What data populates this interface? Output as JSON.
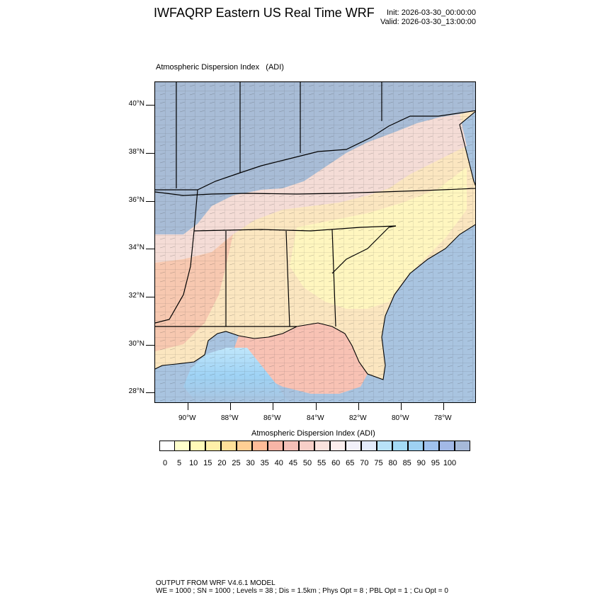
{
  "header": {
    "title": "IWFAQRP Eastern US Real Time WRF",
    "init": "Init: 2026-03-30_00:00:00",
    "valid": "Valid: 2026-03-30_13:00:00"
  },
  "map": {
    "field_label": "Atmospheric Dispersion Index",
    "field_abbrev": "(ADI)",
    "lat_ticks": [
      "40°N",
      "38°N",
      "36°N",
      "34°N",
      "32°N",
      "30°N",
      "28°N"
    ],
    "lon_ticks": [
      "90°W",
      "88°W",
      "86°W",
      "84°W",
      "82°W",
      "80°W",
      "78°W"
    ],
    "ocean_color": "#a9c4e0",
    "border_color": "#000000"
  },
  "colorbar": {
    "title": "Atmospheric Dispersion Index  (ADI)",
    "labels": [
      "0",
      "5",
      "10",
      "15",
      "20",
      "25",
      "30",
      "35",
      "40",
      "45",
      "50",
      "55",
      "60",
      "65",
      "70",
      "75",
      "80",
      "85",
      "90",
      "95",
      "100"
    ],
    "colors": [
      "#ffffff",
      "#ffffcc",
      "#fffab8",
      "#ffefa8",
      "#ffe099",
      "#ffcf94",
      "#ffbc98",
      "#f7b5a6",
      "#f4c0b8",
      "#f7cfc8",
      "#fae2de",
      "#fbeeee",
      "#f3f1fa",
      "#e3ebfa",
      "#b8e2f8",
      "#a4dbf5",
      "#9ed1f2",
      "#a0c2ee",
      "#a2b8e6",
      "#a6b9d8"
    ]
  },
  "footer": {
    "line1": "OUTPUT FROM WRF V4.6.1 MODEL",
    "line2": "WE = 1000 ; SN = 1000 ; Levels = 38 ; Dis = 1.5km ; Phys Opt = 8 ; PBL Opt = 1 ; Cu Opt = 0"
  }
}
